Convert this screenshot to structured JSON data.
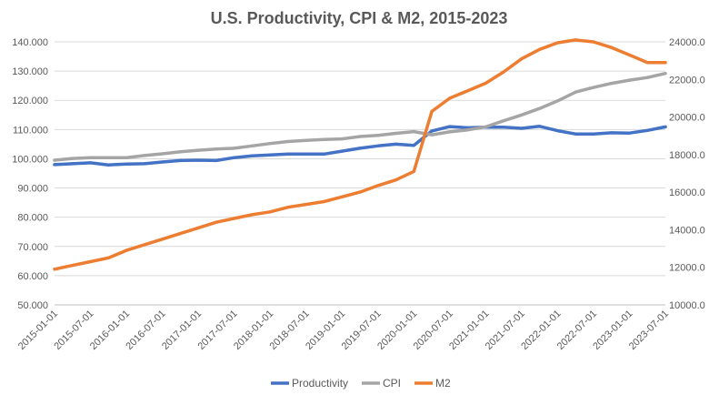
{
  "chart_data": {
    "type": "line",
    "title": "U.S. Productivity, CPI & M2, 2015-2023",
    "xlabel": "",
    "ylabel": "",
    "x": [
      "2015-01-01",
      "2015-04-01",
      "2015-07-01",
      "2015-10-01",
      "2016-01-01",
      "2016-04-01",
      "2016-07-01",
      "2016-10-01",
      "2017-01-01",
      "2017-04-01",
      "2017-07-01",
      "2017-10-01",
      "2018-01-01",
      "2018-04-01",
      "2018-07-01",
      "2018-10-01",
      "2019-01-01",
      "2019-04-01",
      "2019-07-01",
      "2019-10-01",
      "2020-01-01",
      "2020-04-01",
      "2020-07-01",
      "2020-10-01",
      "2021-01-01",
      "2021-04-01",
      "2021-07-01",
      "2021-10-01",
      "2022-01-01",
      "2022-04-01",
      "2022-07-01",
      "2022-10-01",
      "2023-01-01",
      "2023-04-01",
      "2023-07-01"
    ],
    "x_tick_labels": [
      "2015-01-01",
      "2015-07-01",
      "2016-01-01",
      "2016-07-01",
      "2017-01-01",
      "2017-07-01",
      "2018-01-01",
      "2018-07-01",
      "2019-01-01",
      "2019-07-01",
      "2020-01-01",
      "2020-07-01",
      "2021-01-01",
      "2021-07-01",
      "2022-01-01",
      "2022-07-01",
      "2023-01-01",
      "2023-07-01"
    ],
    "y_left": {
      "min": 50,
      "max": 140,
      "step": 10,
      "tick_labels": [
        "50.000",
        "60.000",
        "70.000",
        "80.000",
        "90.000",
        "100.000",
        "110.000",
        "120.000",
        "130.000",
        "140.000"
      ]
    },
    "y_right": {
      "min": 10000,
      "max": 24000,
      "step": 2000,
      "tick_labels": [
        "10000.0",
        "12000.0",
        "14000.0",
        "16000.0",
        "18000.0",
        "20000.0",
        "22000.0",
        "24000.0"
      ]
    },
    "grid": true,
    "legend_position": "bottom",
    "series": [
      {
        "name": "Productivity",
        "axis": "left",
        "color": "#4472c4",
        "values": [
          98.0,
          98.3,
          98.6,
          97.9,
          98.2,
          98.3,
          98.9,
          99.4,
          99.5,
          99.4,
          100.4,
          101.0,
          101.3,
          101.6,
          101.6,
          101.6,
          102.6,
          103.6,
          104.4,
          105.0,
          104.6,
          109.5,
          111.0,
          110.6,
          110.8,
          110.8,
          110.4,
          111.1,
          109.6,
          108.5,
          108.5,
          108.9,
          108.8,
          109.7,
          110.9
        ]
      },
      {
        "name": "CPI",
        "axis": "left",
        "color": "#a5a5a5",
        "values": [
          99.5,
          100.1,
          100.4,
          100.4,
          100.4,
          101.1,
          101.7,
          102.4,
          102.9,
          103.3,
          103.6,
          104.4,
          105.2,
          105.9,
          106.3,
          106.6,
          106.8,
          107.6,
          108.0,
          108.7,
          109.3,
          108.2,
          109.2,
          109.9,
          110.9,
          113.0,
          115.0,
          117.2,
          119.8,
          122.8,
          124.4,
          125.8,
          126.9,
          127.8,
          129.2
        ]
      },
      {
        "name": "M2",
        "axis": "right",
        "color": "#ed7d31",
        "values": [
          11900,
          12100,
          12300,
          12500,
          12900,
          13200,
          13500,
          13800,
          14100,
          14400,
          14600,
          14800,
          14950,
          15200,
          15350,
          15500,
          15750,
          16000,
          16350,
          16650,
          17100,
          20300,
          21000,
          21400,
          21800,
          22400,
          23100,
          23600,
          23950,
          24100,
          24000,
          23700,
          23300,
          22900,
          22900
        ]
      }
    ]
  }
}
